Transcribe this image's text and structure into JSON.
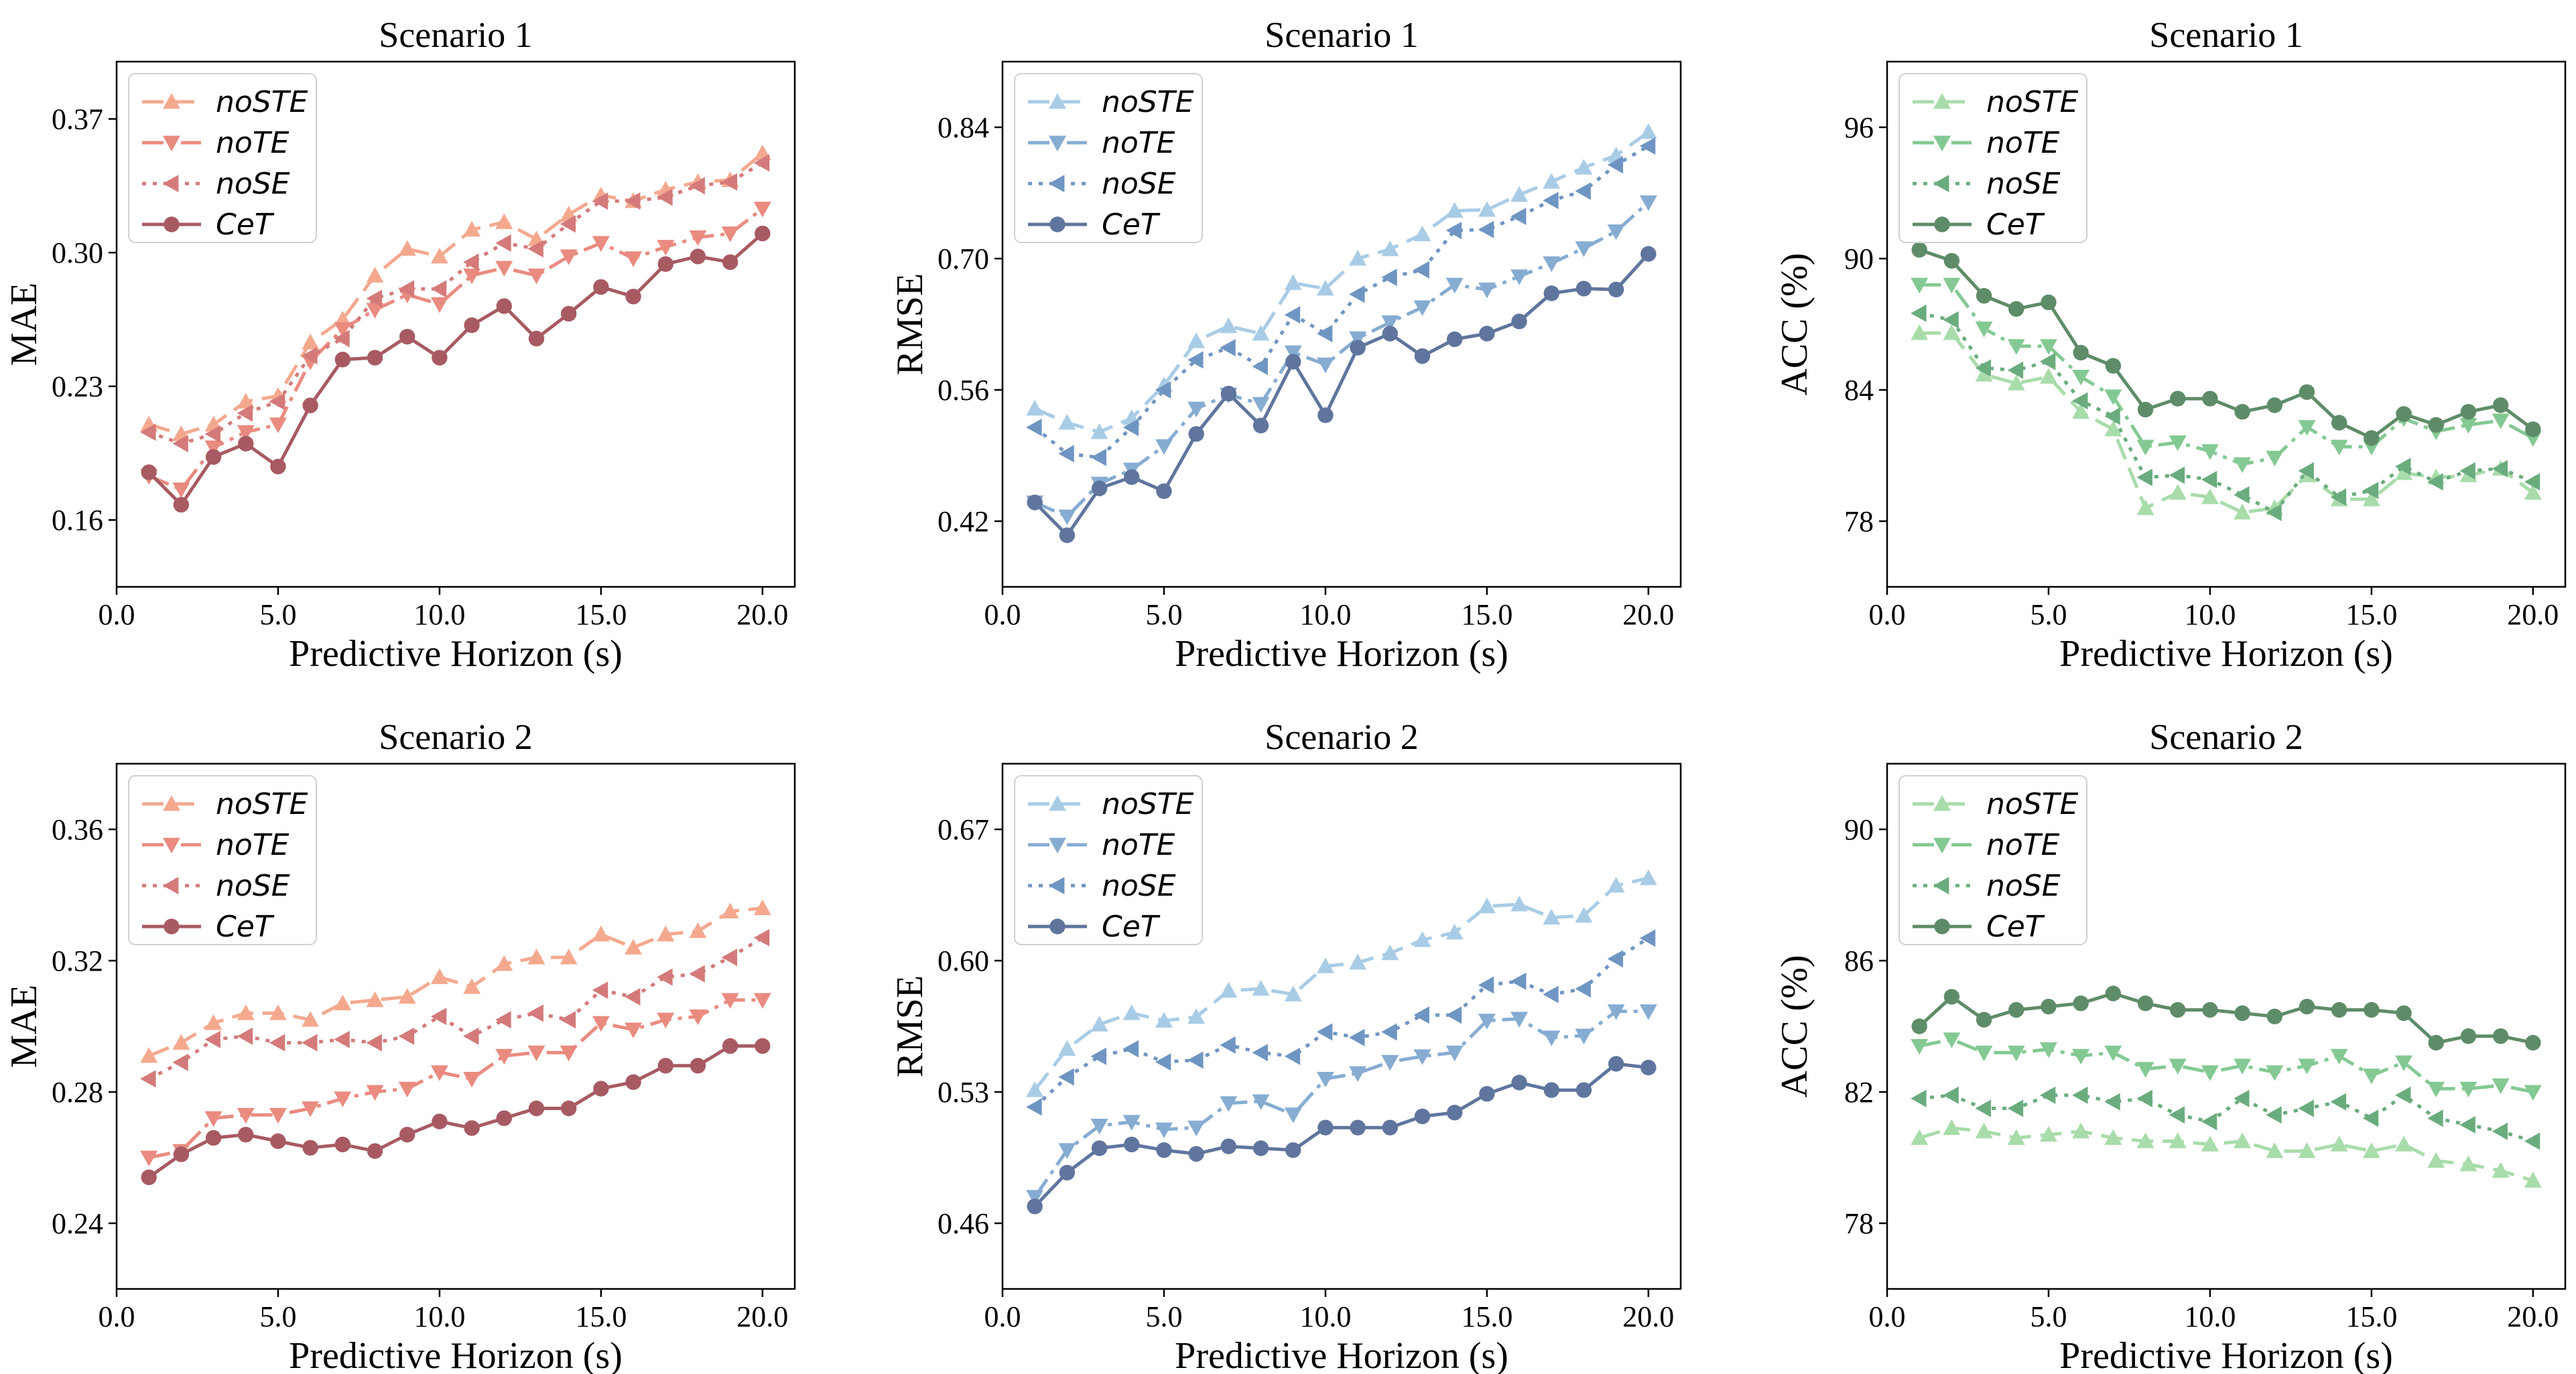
{
  "chart_data": [
    {
      "type": "line",
      "title": "Scenario 1",
      "xlabel": "Predictive Horizon (s)",
      "ylabel": "MAE",
      "xlim": [
        0,
        21
      ],
      "ylim": [
        0.125,
        0.4
      ],
      "xticks": [
        0,
        5,
        10,
        15,
        20
      ],
      "xtick_labels": [
        "0.0",
        "5.0",
        "10.0",
        "15.0",
        "20.0"
      ],
      "yticks": [
        0.16,
        0.23,
        0.3,
        0.37
      ],
      "ytick_labels": [
        "0.16",
        "0.23",
        "0.30",
        "0.37"
      ],
      "legend_position": "top-left",
      "x": [
        1,
        2,
        3,
        4,
        5,
        6,
        7,
        8,
        9,
        10,
        11,
        12,
        13,
        14,
        15,
        16,
        17,
        18,
        19,
        20
      ],
      "series": [
        {
          "name": "noSTE",
          "color": "#f4a98f",
          "dash": "dashed",
          "marker": "triangle-up",
          "values": [
            0.21,
            0.205,
            0.21,
            0.222,
            0.225,
            0.253,
            0.265,
            0.288,
            0.302,
            0.298,
            0.312,
            0.316,
            0.307,
            0.32,
            0.33,
            0.327,
            0.333,
            0.337,
            0.338,
            0.352
          ]
        },
        {
          "name": "noTE",
          "color": "#ea8b80",
          "dash": "dashdot",
          "marker": "triangle-down",
          "values": [
            0.183,
            0.176,
            0.198,
            0.206,
            0.21,
            0.243,
            0.26,
            0.27,
            0.278,
            0.273,
            0.288,
            0.292,
            0.288,
            0.298,
            0.305,
            0.297,
            0.303,
            0.308,
            0.31,
            0.323
          ]
        },
        {
          "name": "noSE",
          "color": "#d47a7a",
          "dash": "dotted",
          "marker": "triangle-left",
          "values": [
            0.206,
            0.2,
            0.205,
            0.216,
            0.222,
            0.246,
            0.255,
            0.276,
            0.281,
            0.281,
            0.295,
            0.305,
            0.302,
            0.315,
            0.327,
            0.327,
            0.329,
            0.335,
            0.337,
            0.347
          ]
        },
        {
          "name": "CeT",
          "color": "#a85a63",
          "dash": "solid",
          "marker": "circle",
          "values": [
            0.185,
            0.168,
            0.193,
            0.2,
            0.188,
            0.22,
            0.244,
            0.245,
            0.256,
            0.245,
            0.262,
            0.272,
            0.255,
            0.268,
            0.282,
            0.277,
            0.294,
            0.298,
            0.295,
            0.31
          ]
        }
      ]
    },
    {
      "type": "line",
      "title": "Scenario 1",
      "xlabel": "Predictive Horizon (s)",
      "ylabel": "RMSE",
      "xlim": [
        0,
        21
      ],
      "ylim": [
        0.35,
        0.91
      ],
      "xticks": [
        0,
        5,
        10,
        15,
        20
      ],
      "xtick_labels": [
        "0.0",
        "5.0",
        "10.0",
        "15.0",
        "20.0"
      ],
      "yticks": [
        0.42,
        0.56,
        0.7,
        0.84
      ],
      "ytick_labels": [
        "0.42",
        "0.56",
        "0.70",
        "0.84"
      ],
      "legend_position": "top-left",
      "x": [
        1,
        2,
        3,
        4,
        5,
        6,
        7,
        8,
        9,
        10,
        11,
        12,
        13,
        14,
        15,
        16,
        17,
        18,
        19,
        20
      ],
      "series": [
        {
          "name": "noSTE",
          "color": "#a9cce6",
          "dash": "dashed",
          "marker": "triangle-up",
          "values": [
            0.54,
            0.525,
            0.515,
            0.53,
            0.565,
            0.612,
            0.628,
            0.62,
            0.674,
            0.668,
            0.7,
            0.71,
            0.726,
            0.751,
            0.752,
            0.768,
            0.782,
            0.797,
            0.81,
            0.835
          ]
        },
        {
          "name": "noTE",
          "color": "#86acd2",
          "dash": "dashdot",
          "marker": "triangle-down",
          "values": [
            0.44,
            0.425,
            0.46,
            0.475,
            0.5,
            0.54,
            0.555,
            0.545,
            0.6,
            0.587,
            0.615,
            0.632,
            0.648,
            0.672,
            0.667,
            0.681,
            0.695,
            0.711,
            0.729,
            0.76
          ]
        },
        {
          "name": "noSE",
          "color": "#6f95c2",
          "dash": "dotted",
          "marker": "triangle-left",
          "values": [
            0.52,
            0.492,
            0.488,
            0.52,
            0.56,
            0.592,
            0.605,
            0.585,
            0.64,
            0.62,
            0.662,
            0.68,
            0.688,
            0.73,
            0.731,
            0.745,
            0.762,
            0.772,
            0.8,
            0.82
          ]
        },
        {
          "name": "CeT",
          "color": "#5f759e",
          "dash": "solid",
          "marker": "circle",
          "values": [
            0.44,
            0.405,
            0.455,
            0.467,
            0.452,
            0.513,
            0.556,
            0.522,
            0.59,
            0.533,
            0.605,
            0.62,
            0.596,
            0.614,
            0.62,
            0.633,
            0.663,
            0.668,
            0.667,
            0.705
          ]
        }
      ]
    },
    {
      "type": "line",
      "title": "Scenario 1",
      "xlabel": "Predictive Horizon (s)",
      "ylabel": "ACC (%)",
      "xlim": [
        0,
        21
      ],
      "ylim": [
        75,
        99
      ],
      "xticks": [
        0,
        5,
        10,
        15,
        20
      ],
      "xtick_labels": [
        "0.0",
        "5.0",
        "10.0",
        "15.0",
        "20.0"
      ],
      "yticks": [
        78,
        84,
        90,
        96
      ],
      "ytick_labels": [
        "78",
        "84",
        "90",
        "96"
      ],
      "legend_position": "top-left",
      "x": [
        1,
        2,
        3,
        4,
        5,
        6,
        7,
        8,
        9,
        10,
        11,
        12,
        13,
        14,
        15,
        16,
        17,
        18,
        19,
        20
      ],
      "series": [
        {
          "name": "noSTE",
          "color": "#a8dcaa",
          "dash": "dashed",
          "marker": "triangle-up",
          "values": [
            86.6,
            86.6,
            84.7,
            84.3,
            84.6,
            83.0,
            82.2,
            78.6,
            79.3,
            79.1,
            78.4,
            78.6,
            80.1,
            79.0,
            79.0,
            80.2,
            80.0,
            80.1,
            80.4,
            79.3
          ]
        },
        {
          "name": "noTE",
          "color": "#84c993",
          "dash": "dashdot",
          "marker": "triangle-down",
          "values": [
            88.8,
            88.8,
            86.8,
            86.0,
            86.0,
            84.6,
            83.7,
            81.4,
            81.6,
            81.2,
            80.6,
            80.9,
            82.3,
            81.4,
            81.4,
            82.7,
            82.1,
            82.4,
            82.6,
            81.8
          ]
        },
        {
          "name": "noSE",
          "color": "#6aac7e",
          "dash": "dotted",
          "marker": "triangle-left",
          "values": [
            87.5,
            87.2,
            85.0,
            84.9,
            85.3,
            83.5,
            82.8,
            80.0,
            80.1,
            79.9,
            79.2,
            78.4,
            80.3,
            79.1,
            79.4,
            80.5,
            79.8,
            80.3,
            80.4,
            79.8
          ]
        },
        {
          "name": "CeT",
          "color": "#5e8c68",
          "dash": "solid",
          "marker": "circle",
          "values": [
            90.4,
            89.9,
            88.3,
            87.7,
            88.0,
            85.7,
            85.1,
            83.1,
            83.6,
            83.6,
            83.0,
            83.3,
            83.9,
            82.5,
            81.8,
            82.9,
            82.4,
            83.0,
            83.3,
            82.2
          ]
        }
      ]
    },
    {
      "type": "line",
      "title": "Scenario 2",
      "xlabel": "Predictive Horizon (s)",
      "ylabel": "MAE",
      "xlim": [
        0,
        21
      ],
      "ylim": [
        0.22,
        0.38
      ],
      "xticks": [
        0,
        5,
        10,
        15,
        20
      ],
      "xtick_labels": [
        "0.0",
        "5.0",
        "10.0",
        "15.0",
        "20.0"
      ],
      "yticks": [
        0.24,
        0.28,
        0.32,
        0.36
      ],
      "ytick_labels": [
        "0.24",
        "0.28",
        "0.32",
        "0.36"
      ],
      "legend_position": "top-left",
      "x": [
        1,
        2,
        3,
        4,
        5,
        6,
        7,
        8,
        9,
        10,
        11,
        12,
        13,
        14,
        15,
        16,
        17,
        18,
        19,
        20
      ],
      "series": [
        {
          "name": "noSTE",
          "color": "#f4a98f",
          "dash": "dashed",
          "marker": "triangle-up",
          "values": [
            0.291,
            0.295,
            0.301,
            0.304,
            0.304,
            0.302,
            0.307,
            0.308,
            0.309,
            0.315,
            0.312,
            0.319,
            0.321,
            0.321,
            0.328,
            0.324,
            0.328,
            0.329,
            0.335,
            0.336
          ]
        },
        {
          "name": "noTE",
          "color": "#ea8b80",
          "dash": "dashdot",
          "marker": "triangle-down",
          "values": [
            0.26,
            0.262,
            0.272,
            0.273,
            0.273,
            0.275,
            0.278,
            0.28,
            0.281,
            0.286,
            0.284,
            0.291,
            0.292,
            0.292,
            0.301,
            0.299,
            0.302,
            0.303,
            0.308,
            0.308
          ]
        },
        {
          "name": "noSE",
          "color": "#d47a7a",
          "dash": "dotted",
          "marker": "triangle-left",
          "values": [
            0.284,
            0.289,
            0.296,
            0.297,
            0.295,
            0.295,
            0.296,
            0.295,
            0.297,
            0.303,
            0.297,
            0.302,
            0.304,
            0.302,
            0.311,
            0.309,
            0.315,
            0.316,
            0.321,
            0.327
          ]
        },
        {
          "name": "CeT",
          "color": "#a85a63",
          "dash": "solid",
          "marker": "circle",
          "values": [
            0.254,
            0.261,
            0.266,
            0.267,
            0.265,
            0.263,
            0.264,
            0.262,
            0.267,
            0.271,
            0.269,
            0.272,
            0.275,
            0.275,
            0.281,
            0.283,
            0.288,
            0.288,
            0.294,
            0.294
          ]
        }
      ]
    },
    {
      "type": "line",
      "title": "Scenario 2",
      "xlabel": "Predictive Horizon (s)",
      "ylabel": "RMSE",
      "xlim": [
        0,
        21
      ],
      "ylim": [
        0.425,
        0.705
      ],
      "xticks": [
        0,
        5,
        10,
        15,
        20
      ],
      "xtick_labels": [
        "0.0",
        "5.0",
        "10.0",
        "15.0",
        "20.0"
      ],
      "yticks": [
        0.46,
        0.53,
        0.6,
        0.67
      ],
      "ytick_labels": [
        "0.46",
        "0.53",
        "0.60",
        "0.67"
      ],
      "legend_position": "top-left",
      "x": [
        1,
        2,
        3,
        4,
        5,
        6,
        7,
        8,
        9,
        10,
        11,
        12,
        13,
        14,
        15,
        16,
        17,
        18,
        19,
        20
      ],
      "series": [
        {
          "name": "noSTE",
          "color": "#a9cce6",
          "dash": "dashed",
          "marker": "triangle-up",
          "values": [
            0.531,
            0.553,
            0.566,
            0.572,
            0.568,
            0.57,
            0.584,
            0.585,
            0.582,
            0.597,
            0.599,
            0.604,
            0.611,
            0.615,
            0.629,
            0.63,
            0.623,
            0.624,
            0.64,
            0.644
          ]
        },
        {
          "name": "noTE",
          "color": "#86acd2",
          "dash": "dashdot",
          "marker": "triangle-down",
          "values": [
            0.474,
            0.499,
            0.512,
            0.514,
            0.51,
            0.511,
            0.524,
            0.525,
            0.518,
            0.537,
            0.54,
            0.546,
            0.549,
            0.551,
            0.568,
            0.569,
            0.559,
            0.56,
            0.573,
            0.573
          ]
        },
        {
          "name": "noSE",
          "color": "#6f95c2",
          "dash": "dotted",
          "marker": "triangle-left",
          "values": [
            0.522,
            0.538,
            0.549,
            0.553,
            0.546,
            0.547,
            0.555,
            0.551,
            0.549,
            0.562,
            0.559,
            0.562,
            0.571,
            0.571,
            0.587,
            0.589,
            0.582,
            0.585,
            0.601,
            0.612
          ]
        },
        {
          "name": "CeT",
          "color": "#5f759e",
          "dash": "solid",
          "marker": "circle",
          "values": [
            0.469,
            0.487,
            0.5,
            0.502,
            0.499,
            0.497,
            0.501,
            0.5,
            0.499,
            0.511,
            0.511,
            0.511,
            0.517,
            0.519,
            0.529,
            0.535,
            0.531,
            0.531,
            0.545,
            0.543
          ]
        }
      ]
    },
    {
      "type": "line",
      "title": "Scenario 2",
      "xlabel": "Predictive Horizon (s)",
      "ylabel": "ACC (%)",
      "xlim": [
        0,
        21
      ],
      "ylim": [
        76,
        92
      ],
      "xticks": [
        0,
        5,
        10,
        15,
        20
      ],
      "xtick_labels": [
        "0.0",
        "5.0",
        "10.0",
        "15.0",
        "20.0"
      ],
      "yticks": [
        78,
        82,
        86,
        90
      ],
      "ytick_labels": [
        "78",
        "82",
        "86",
        "90"
      ],
      "legend_position": "top-left",
      "x": [
        1,
        2,
        3,
        4,
        5,
        6,
        7,
        8,
        9,
        10,
        11,
        12,
        13,
        14,
        15,
        16,
        17,
        18,
        19,
        20
      ],
      "series": [
        {
          "name": "noSTE",
          "color": "#a8dcaa",
          "dash": "dashed",
          "marker": "triangle-up",
          "values": [
            80.6,
            80.9,
            80.8,
            80.6,
            80.7,
            80.8,
            80.6,
            80.5,
            80.5,
            80.4,
            80.5,
            80.2,
            80.2,
            80.4,
            80.2,
            80.4,
            79.9,
            79.8,
            79.6,
            79.3
          ]
        },
        {
          "name": "noTE",
          "color": "#84c993",
          "dash": "dashdot",
          "marker": "triangle-down",
          "values": [
            83.4,
            83.6,
            83.2,
            83.2,
            83.3,
            83.1,
            83.2,
            82.7,
            82.8,
            82.6,
            82.8,
            82.6,
            82.8,
            83.1,
            82.5,
            82.9,
            82.1,
            82.1,
            82.2,
            82.0
          ]
        },
        {
          "name": "noSE",
          "color": "#6aac7e",
          "dash": "dotted",
          "marker": "triangle-left",
          "values": [
            81.8,
            81.9,
            81.5,
            81.5,
            81.9,
            81.9,
            81.7,
            81.8,
            81.3,
            81.1,
            81.8,
            81.3,
            81.5,
            81.7,
            81.2,
            81.9,
            81.2,
            81.0,
            80.8,
            80.5
          ]
        },
        {
          "name": "CeT",
          "color": "#5e8c68",
          "dash": "solid",
          "marker": "circle",
          "values": [
            84.0,
            84.9,
            84.2,
            84.5,
            84.6,
            84.7,
            85.0,
            84.7,
            84.5,
            84.5,
            84.4,
            84.3,
            84.6,
            84.5,
            84.5,
            84.4,
            83.5,
            83.7,
            83.7,
            83.5
          ]
        }
      ]
    }
  ]
}
